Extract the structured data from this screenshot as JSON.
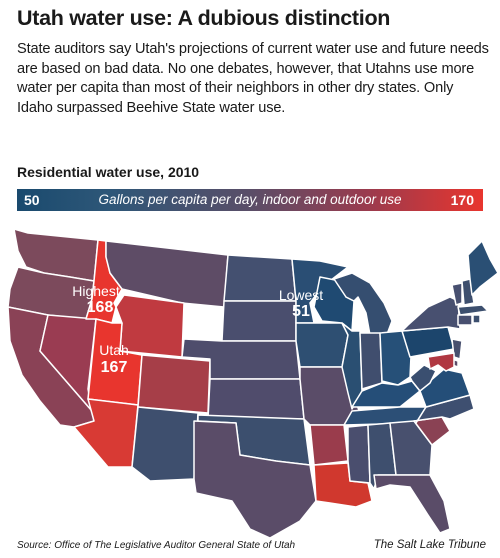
{
  "title": "Utah water use: A dubious distinction",
  "intro": "State auditors say Utah's projections of current water use and future needs are based on bad data. No one debates, however, that Utahns use more water per capita than most of their neighbors in other dry states. Only Idaho surpassed Beehive State water use.",
  "subhead": "Residential water use, 2010",
  "legend": {
    "min": "50",
    "max": "170",
    "caption": "Gallons per capita per day, indoor and outdoor use",
    "colors": {
      "low": "#1a4a6e",
      "mid": "#5a4e68",
      "high": "#e8352e"
    }
  },
  "callouts": {
    "highest": {
      "label": "Highest",
      "value": "168",
      "state": "Idaho"
    },
    "utah": {
      "label": "Utah",
      "value": "167",
      "state": "Utah"
    },
    "lowest": {
      "label": "Lowest",
      "value": "51",
      "state": "Wisconsin"
    }
  },
  "source": "Source: Office of The Legislative Auditor General State of Utah",
  "credit": "The Salt Lake Tribune"
}
